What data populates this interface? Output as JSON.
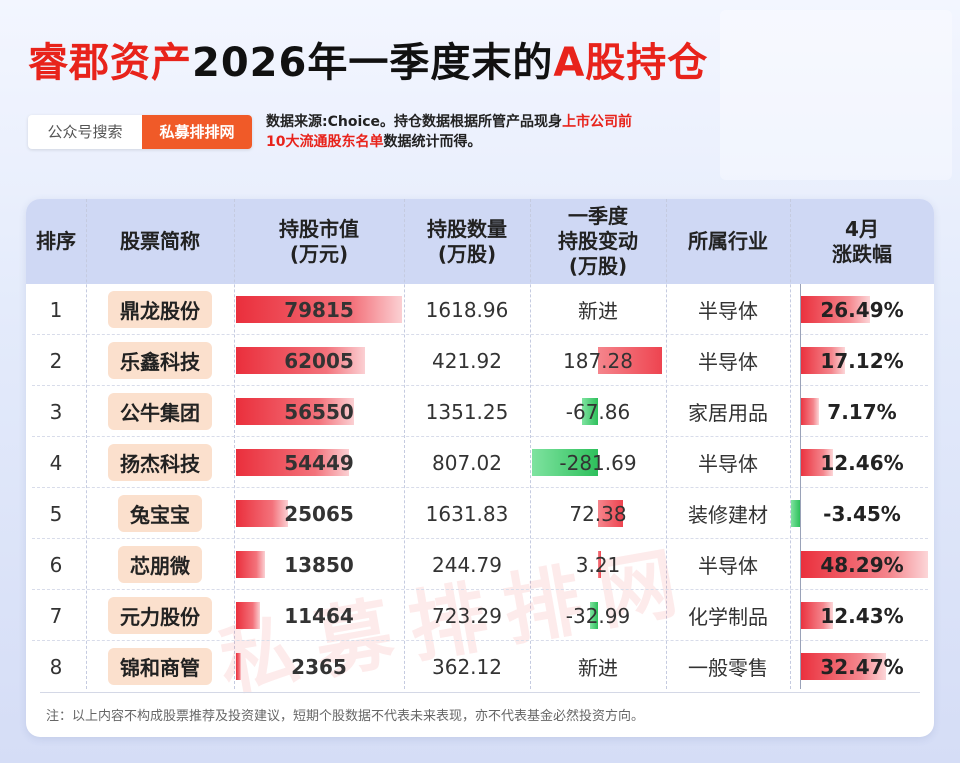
{
  "title": {
    "part1": "睿郡资产",
    "part2": "2026年一季度末的",
    "part3": "A股持仓"
  },
  "source": {
    "label": "公众号搜索",
    "brand": "私募排排网",
    "note_a": "数据来源:Choice。持仓数据根据所管产品现身",
    "note_hl1": "上市公司前",
    "note_hl2": "10大流通股东名单",
    "note_b": "数据统计而得。"
  },
  "watermark": "私募排排网",
  "headers": {
    "rank": "排序",
    "name": "股票简称",
    "mv_1": "持股市值",
    "mv_2": "(万元)",
    "qty_1": "持股数量",
    "qty_2": "(万股)",
    "chg_1": "一季度",
    "chg_2": "持股变动",
    "chg_3": "(万股)",
    "ind": "所属行业",
    "apr_1": "4月",
    "apr_2": "涨跌幅"
  },
  "colors": {
    "red": "#e8231b",
    "brand_orange": "#f05a28",
    "header_bg": "#cfd8f4",
    "pill": "#fbe0cd",
    "bar_red": "#ea2f3c",
    "bar_green": "#2ec05c"
  },
  "rows": [
    {
      "rank": "1",
      "name": "鼎龙股份",
      "mv": "79815",
      "mv_value": 79815,
      "qty": "1618.96",
      "chg": "新进",
      "chg_value": null,
      "ind": "半导体",
      "apr": "26.49%",
      "apr_value": 26.49
    },
    {
      "rank": "2",
      "name": "乐鑫科技",
      "mv": "62005",
      "mv_value": 62005,
      "qty": "421.92",
      "chg": "187.28",
      "chg_value": 187.28,
      "ind": "半导体",
      "apr": "17.12%",
      "apr_value": 17.12
    },
    {
      "rank": "3",
      "name": "公牛集团",
      "mv": "56550",
      "mv_value": 56550,
      "qty": "1351.25",
      "chg": "-67.86",
      "chg_value": -67.86,
      "ind": "家居用品",
      "apr": "7.17%",
      "apr_value": 7.17
    },
    {
      "rank": "4",
      "name": "扬杰科技",
      "mv": "54449",
      "mv_value": 54449,
      "qty": "807.02",
      "chg": "-281.69",
      "chg_value": -281.69,
      "ind": "半导体",
      "apr": "12.46%",
      "apr_value": 12.46
    },
    {
      "rank": "5",
      "name": "兔宝宝",
      "mv": "25065",
      "mv_value": 25065,
      "qty": "1631.83",
      "chg": "72.38",
      "chg_value": 72.38,
      "ind": "装修建材",
      "apr": "-3.45%",
      "apr_value": -3.45
    },
    {
      "rank": "6",
      "name": "芯朋微",
      "mv": "13850",
      "mv_value": 13850,
      "qty": "244.79",
      "chg": "3.21",
      "chg_value": 3.21,
      "ind": "半导体",
      "apr": "48.29%",
      "apr_value": 48.29
    },
    {
      "rank": "7",
      "name": "元力股份",
      "mv": "11464",
      "mv_value": 11464,
      "qty": "723.29",
      "chg": "-32.99",
      "chg_value": -32.99,
      "ind": "化学制品",
      "apr": "12.43%",
      "apr_value": 12.43
    },
    {
      "rank": "8",
      "name": "锦和商管",
      "mv": "2365",
      "mv_value": 2365,
      "qty": "362.12",
      "chg": "新进",
      "chg_value": null,
      "ind": "一般零售",
      "apr": "32.47%",
      "apr_value": 32.47
    }
  ],
  "footnote": "注：以上内容不构成股票推荐及投资建议，短期个股数据不代表未来表现，亦不代表基金必然投资方向。"
}
